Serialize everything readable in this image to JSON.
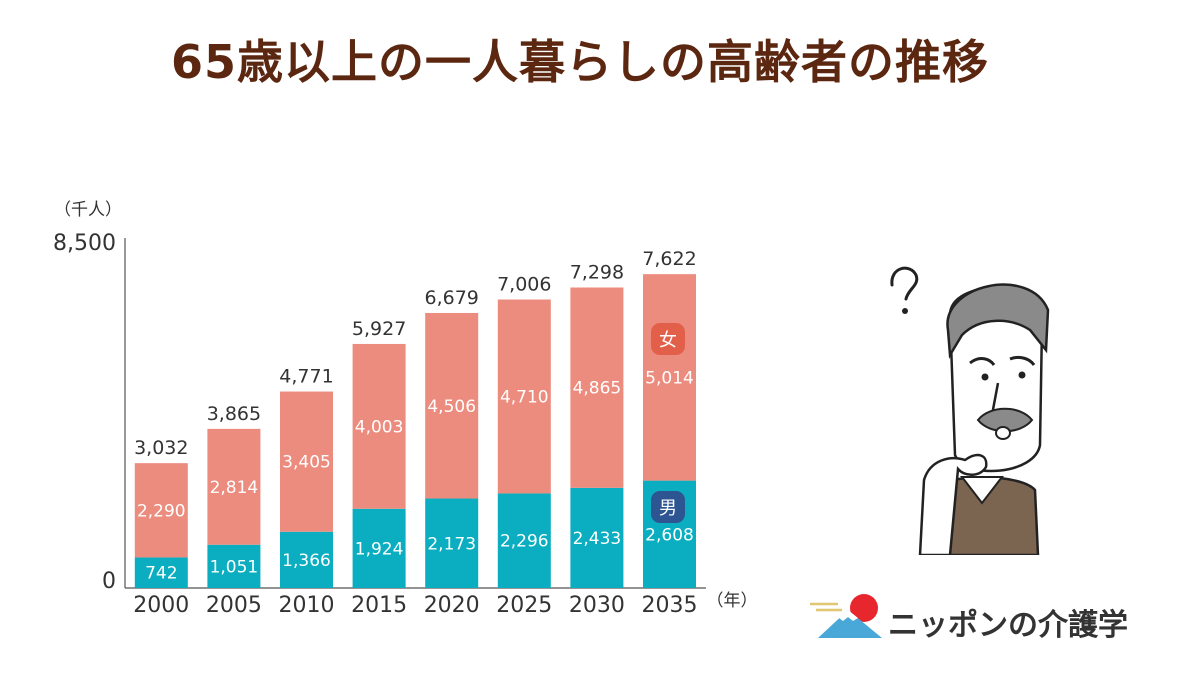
{
  "title": "65歳以上の一人暮らしの高齢者の推移",
  "logo_text": "ニッポンの介護学",
  "chart_data": {
    "type": "bar",
    "stacked": true,
    "y_unit": "（千人）",
    "x_unit": "（年）",
    "ylim": [
      0,
      8500
    ],
    "y_ticks": [
      "0",
      "8,500"
    ],
    "categories": [
      "2000",
      "2005",
      "2010",
      "2015",
      "2020",
      "2025",
      "2030",
      "2035"
    ],
    "series": [
      {
        "name": "男",
        "color": "#0aaec0",
        "values": [
          742,
          1051,
          1366,
          1924,
          2173,
          2296,
          2433,
          2608
        ],
        "labels": [
          "742",
          "1,051",
          "1,366",
          "1,924",
          "2,173",
          "2,296",
          "2,433",
          "2,608"
        ]
      },
      {
        "name": "女",
        "color": "#ec8c7e",
        "values": [
          2290,
          2814,
          3405,
          4003,
          4506,
          4710,
          4865,
          5014
        ],
        "labels": [
          "2,290",
          "2,814",
          "3,405",
          "4,003",
          "4,506",
          "4,710",
          "4,865",
          "5,014"
        ]
      }
    ],
    "totals": [
      3032,
      3865,
      4771,
      5927,
      6679,
      7006,
      7298,
      7622
    ],
    "total_labels": [
      "3,032",
      "3,865",
      "4,771",
      "5,927",
      "6,679",
      "7,006",
      "7,298",
      "7,622"
    ],
    "grid": false,
    "legend": "badges-on-last-bar"
  },
  "colors": {
    "title": "#5c2710",
    "male": "#0aaec0",
    "female": "#ec8c7e",
    "badge_male": "#2c5591",
    "badge_female": "#e2604a",
    "logo_sun": "#e8262e",
    "logo_mountain": "#4aa8d8"
  }
}
